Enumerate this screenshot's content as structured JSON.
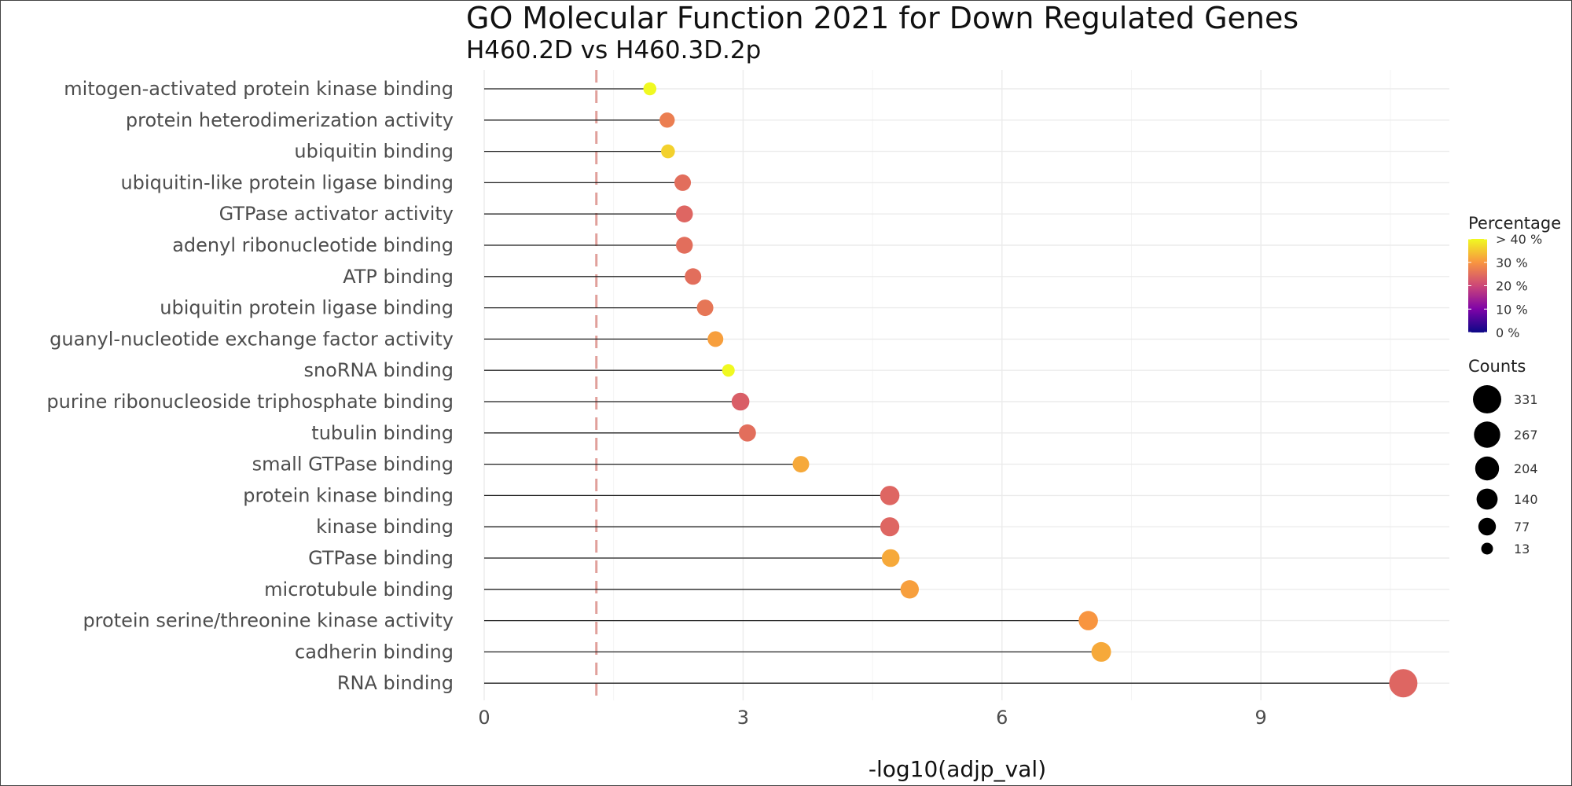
{
  "chart_data": {
    "type": "scatter",
    "style": "lollipop",
    "title": "GO Molecular Function 2021 for Down Regulated Genes",
    "subtitle": "H460.2D vs H460.3D.2p",
    "xlabel": "-log10(adjp_val)",
    "ylabel": "",
    "xlim": [
      0,
      11.2
    ],
    "xticks": [
      0,
      3,
      6,
      9
    ],
    "grid": true,
    "legend_placement": "right",
    "threshold_line": {
      "x": 1.3,
      "color": "#e0a09b",
      "style": "dashed"
    },
    "categories": [
      "mitogen-activated protein kinase binding",
      "protein heterodimerization activity",
      "ubiquitin binding",
      "ubiquitin-like protein ligase binding",
      "GTPase activator activity",
      "adenyl ribonucleotide binding",
      "ATP binding",
      "ubiquitin protein ligase binding",
      "guanyl-nucleotide exchange factor activity",
      "snoRNA binding",
      "purine ribonucleoside triphosphate binding",
      "tubulin binding",
      "small GTPase binding",
      "protein kinase binding",
      "kinase binding",
      "GTPase binding",
      "microtubule binding",
      "protein serine/threonine kinase activity",
      "cadherin binding",
      "RNA binding"
    ],
    "values": [
      1.92,
      2.12,
      2.13,
      2.3,
      2.32,
      2.32,
      2.42,
      2.56,
      2.68,
      2.83,
      2.97,
      3.05,
      3.67,
      4.7,
      4.7,
      4.71,
      4.93,
      7.0,
      7.15,
      10.65
    ],
    "percentages": [
      42,
      27,
      36,
      25,
      24,
      25,
      25,
      26,
      31,
      42,
      23,
      25,
      32,
      24,
      24,
      32,
      31,
      30,
      32,
      24
    ],
    "counts": [
      22,
      45,
      30,
      60,
      66,
      64,
      60,
      60,
      50,
      18,
      80,
      70,
      60,
      105,
      100,
      80,
      90,
      105,
      110,
      331
    ],
    "legend": {
      "color": {
        "title": "Percentage",
        "labels": [
          "> 40 %",
          "30 %",
          "20 %",
          "10 %",
          "0 %"
        ],
        "stops": [
          "#f0f921",
          "#f89540",
          "#cc4778",
          "#7e03a8",
          "#0d0887"
        ]
      },
      "size": {
        "title": "Counts",
        "labels": [
          "331",
          "267",
          "204",
          "140",
          "77",
          "13"
        ],
        "values": [
          331,
          267,
          204,
          140,
          77,
          13
        ]
      }
    }
  }
}
